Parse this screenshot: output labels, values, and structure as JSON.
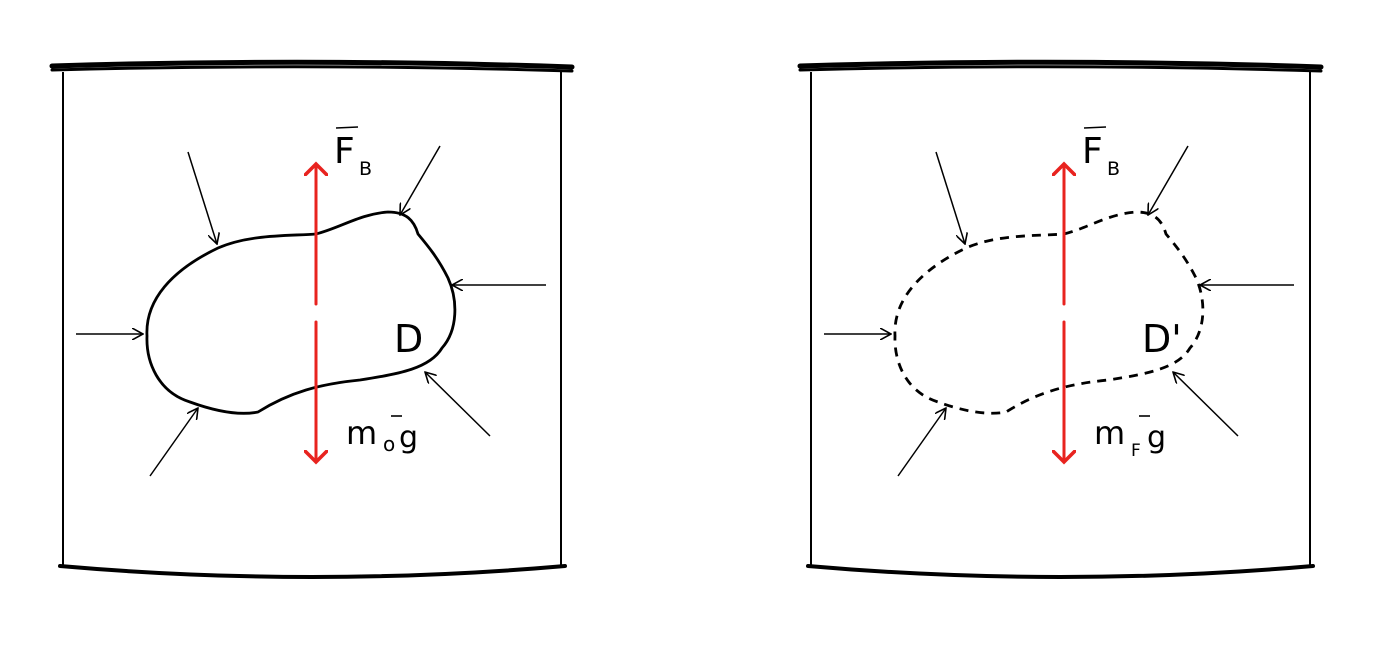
{
  "diagrams": [
    {
      "id": "left",
      "region_label": "D",
      "region_style": "solid",
      "buoyancy_label_main": "F",
      "buoyancy_label_sub": "B",
      "weight_label_main": "m",
      "weight_label_sub": "o",
      "weight_label_g": "g"
    },
    {
      "id": "right",
      "region_label": "D'",
      "region_style": "dashed",
      "buoyancy_label_main": "F",
      "buoyancy_label_sub": "B",
      "weight_label_main": "m",
      "weight_label_sub": "F",
      "weight_label_g": "g"
    }
  ],
  "colors": {
    "ink": "#000000",
    "force_arrow": "#e8231f"
  }
}
